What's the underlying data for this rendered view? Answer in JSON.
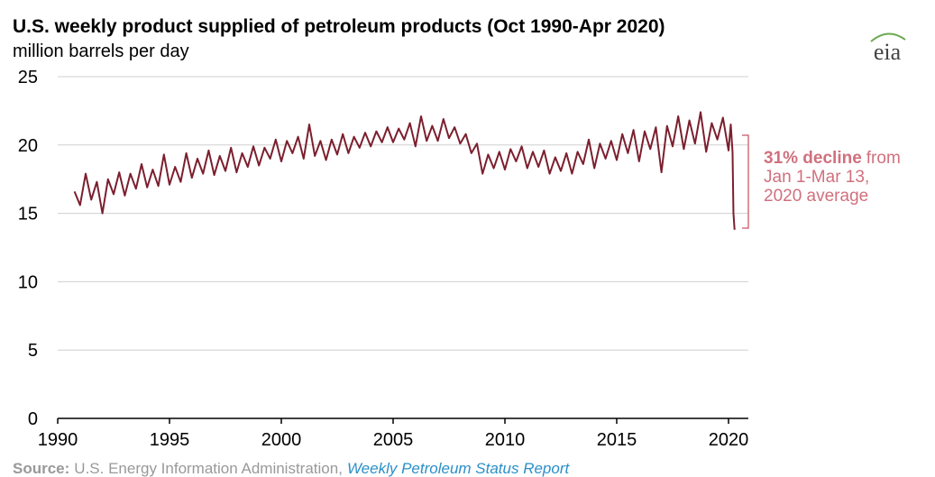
{
  "chart_data": {
    "type": "line",
    "title": "U.S. weekly product supplied of petroleum products (Oct 1990-Apr 2020)",
    "subtitle": "million barrels per day",
    "logo": "eia",
    "color": "#7b1f2e",
    "x": [
      1990.75,
      1991.0,
      1991.25,
      1991.5,
      1991.75,
      1992.0,
      1992.25,
      1992.5,
      1992.75,
      1993.0,
      1993.25,
      1993.5,
      1993.75,
      1994.0,
      1994.25,
      1994.5,
      1994.75,
      1995.0,
      1995.25,
      1995.5,
      1995.75,
      1996.0,
      1996.25,
      1996.5,
      1996.75,
      1997.0,
      1997.25,
      1997.5,
      1997.75,
      1998.0,
      1998.25,
      1998.5,
      1998.75,
      1999.0,
      1999.25,
      1999.5,
      1999.75,
      2000.0,
      2000.25,
      2000.5,
      2000.75,
      2001.0,
      2001.25,
      2001.5,
      2001.75,
      2002.0,
      2002.25,
      2002.5,
      2002.75,
      2003.0,
      2003.25,
      2003.5,
      2003.75,
      2004.0,
      2004.25,
      2004.5,
      2004.75,
      2005.0,
      2005.25,
      2005.5,
      2005.75,
      2006.0,
      2006.25,
      2006.5,
      2006.75,
      2007.0,
      2007.25,
      2007.5,
      2007.75,
      2008.0,
      2008.25,
      2008.5,
      2008.75,
      2009.0,
      2009.25,
      2009.5,
      2009.75,
      2010.0,
      2010.25,
      2010.5,
      2010.75,
      2011.0,
      2011.25,
      2011.5,
      2011.75,
      2012.0,
      2012.25,
      2012.5,
      2012.75,
      2013.0,
      2013.25,
      2013.5,
      2013.75,
      2014.0,
      2014.25,
      2014.5,
      2014.75,
      2015.0,
      2015.25,
      2015.5,
      2015.75,
      2016.0,
      2016.25,
      2016.5,
      2016.75,
      2017.0,
      2017.25,
      2017.5,
      2017.75,
      2018.0,
      2018.25,
      2018.5,
      2018.75,
      2019.0,
      2019.25,
      2019.5,
      2019.75,
      2020.0,
      2020.1,
      2020.18,
      2020.22,
      2020.27
    ],
    "values": [
      16.6,
      15.6,
      17.9,
      16.0,
      17.3,
      15.0,
      17.5,
      16.4,
      18.0,
      16.3,
      17.9,
      16.8,
      18.6,
      16.9,
      18.2,
      17.0,
      19.3,
      17.1,
      18.4,
      17.3,
      19.4,
      17.6,
      19.0,
      17.9,
      19.6,
      17.8,
      19.2,
      18.1,
      19.8,
      18.0,
      19.4,
      18.4,
      19.9,
      18.5,
      19.8,
      19.0,
      20.4,
      18.8,
      20.3,
      19.4,
      20.6,
      19.0,
      21.5,
      19.2,
      20.3,
      18.9,
      20.4,
      19.3,
      20.8,
      19.4,
      20.6,
      19.8,
      20.9,
      19.9,
      21.0,
      20.2,
      21.3,
      20.2,
      21.2,
      20.4,
      21.6,
      19.9,
      22.1,
      20.3,
      21.4,
      20.3,
      21.9,
      20.5,
      21.3,
      20.1,
      20.8,
      19.4,
      20.1,
      17.9,
      19.3,
      18.3,
      19.5,
      18.2,
      19.7,
      18.8,
      19.9,
      18.3,
      19.5,
      18.4,
      19.6,
      17.9,
      19.1,
      18.1,
      19.4,
      17.9,
      19.5,
      18.6,
      20.4,
      18.3,
      20.1,
      19.0,
      20.3,
      18.9,
      20.8,
      19.4,
      21.1,
      18.8,
      21.0,
      19.7,
      21.3,
      18.0,
      21.4,
      19.9,
      22.1,
      19.7,
      21.8,
      20.1,
      22.4,
      19.5,
      21.6,
      20.4,
      22.0,
      19.6,
      21.5,
      19.5,
      15.0,
      13.8
    ],
    "xlim": [
      1990,
      2020.4
    ],
    "ylim": [
      0,
      25
    ],
    "xticks": [
      1990,
      1995,
      2000,
      2005,
      2010,
      2015,
      2020
    ],
    "yticks": [
      0,
      5,
      10,
      15,
      20,
      25
    ],
    "grid": true,
    "annotation": {
      "bold": "31% decline",
      "lines": [
        "from",
        "Jan 1-Mar 13,",
        "2020 average"
      ],
      "color": "#d0707e"
    },
    "source": {
      "label": "Source:",
      "text": "U.S. Energy Information Administration,",
      "link": "Weekly Petroleum Status Report"
    }
  }
}
